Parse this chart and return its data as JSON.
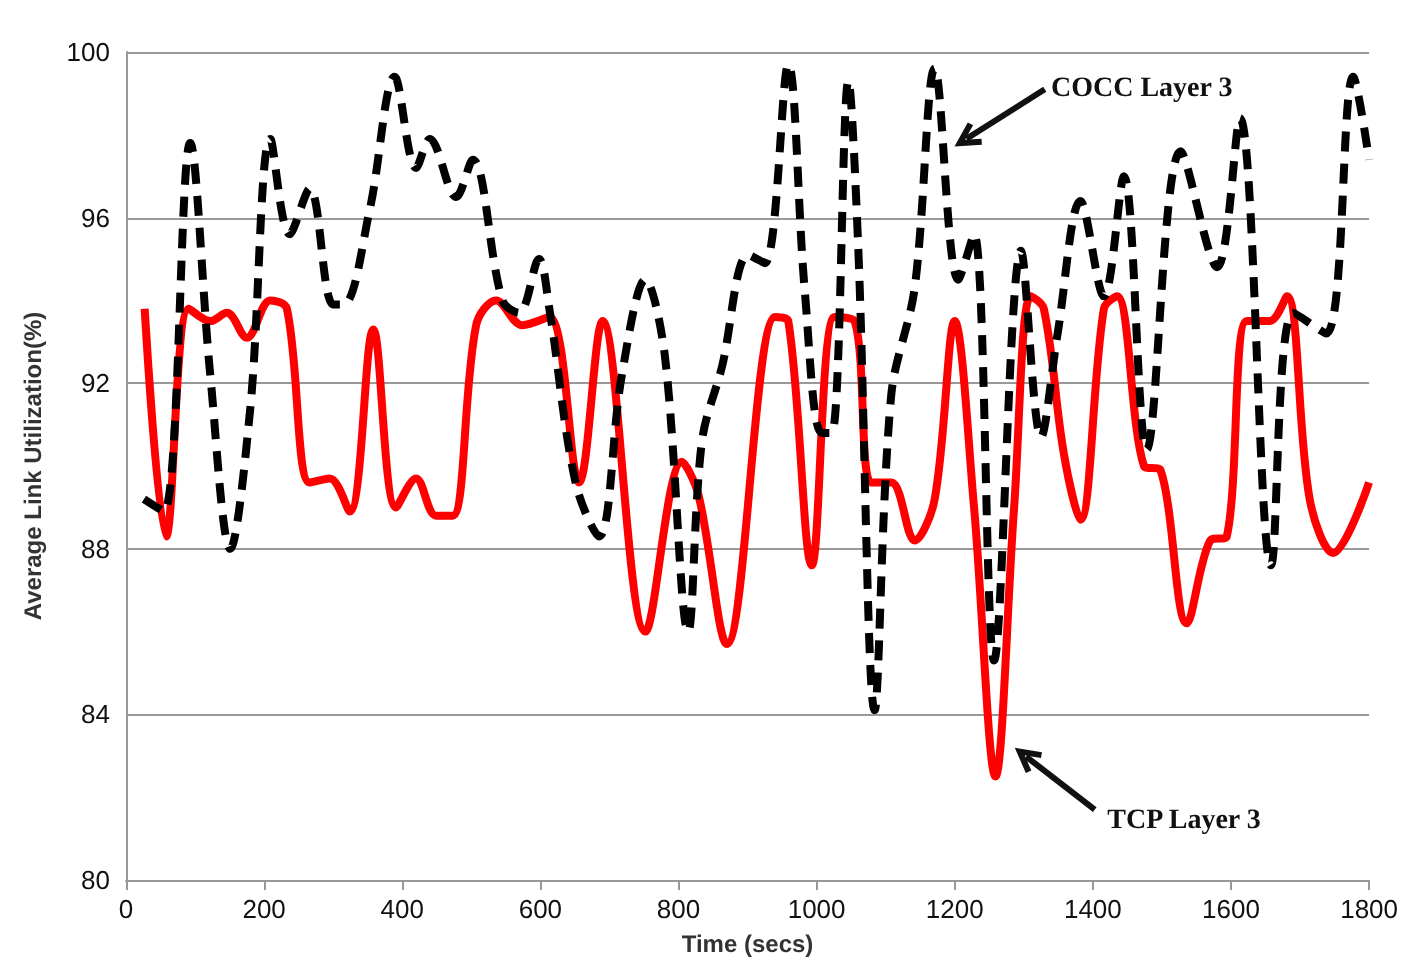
{
  "chart_data": {
    "type": "line",
    "xlabel": "Time (secs)",
    "ylabel": "Average Link Utilization(%)",
    "xlim": [
      0,
      1800
    ],
    "xticks": [
      0,
      200,
      400,
      600,
      800,
      1000,
      1200,
      1400,
      1600,
      1800
    ],
    "ylim": [
      80,
      100
    ],
    "yticks": [
      80,
      84,
      88,
      92,
      96,
      100
    ],
    "grid": "y",
    "legend": false,
    "marker": "none",
    "series": [
      {
        "name": "COCC Layer 3",
        "color": "#000000",
        "line_style": "dashed",
        "x": [
          26,
          55,
          93,
          122,
          151,
          180,
          209,
          237,
          266,
          300,
          315,
          353,
          389,
          420,
          440,
          478,
          502,
          545,
          569,
          598,
          613,
          651,
          685,
          718,
          752,
          780,
          814,
          834,
          863,
          901,
          925,
          959,
          983,
          1007,
          1022,
          1046,
          1060,
          1084,
          1108,
          1142,
          1171,
          1205,
          1228,
          1257,
          1296,
          1325,
          1349,
          1382,
          1416,
          1445,
          1478,
          1527,
          1580,
          1613,
          1658,
          1690,
          1738,
          1777,
          1800
        ],
        "values": [
          89.2,
          88.9,
          97.8,
          92.2,
          88,
          91.4,
          97.9,
          95.6,
          96.7,
          93.9,
          93.9,
          96.2,
          99.4,
          97.2,
          97.9,
          96.5,
          97.4,
          94,
          93.7,
          95,
          93.8,
          89.6,
          88.3,
          92.2,
          94.5,
          92.7,
          86,
          90.6,
          92.4,
          95.1,
          94.9,
          99.7,
          94.2,
          90.8,
          90.8,
          99.3,
          95.4,
          84.1,
          91.7,
          94.3,
          99.6,
          94.5,
          95.6,
          85.3,
          95.2,
          90.7,
          93.2,
          96.4,
          94.1,
          97,
          90.4,
          97.6,
          94.8,
          98.4,
          87.6,
          93.7,
          93.2,
          99.4,
          97.4
        ]
      },
      {
        "name": "TCP Layer 3",
        "color": "#ff0000",
        "line_style": "solid",
        "x": [
          27,
          58,
          91,
          122,
          146,
          175,
          209,
          233,
          266,
          295,
          324,
          358,
          391,
          420,
          449,
          473,
          507,
          536,
          574,
          613,
          656,
          690,
          752,
          805,
          829,
          870,
          940,
          959,
          993,
          1026,
          1055,
          1079,
          1108,
          1142,
          1171,
          1200,
          1228,
          1259,
          1286,
          1310,
          1329,
          1358,
          1382,
          1416,
          1435,
          1474,
          1498,
          1536,
          1570,
          1594,
          1623,
          1656,
          1681,
          1714,
          1748,
          1800
        ],
        "values": [
          93.8,
          88.3,
          93.8,
          93.5,
          93.7,
          93.1,
          94,
          93.8,
          89.6,
          89.7,
          88.9,
          93.3,
          89,
          89.7,
          88.8,
          88.8,
          93.4,
          94,
          93.4,
          93.6,
          89.6,
          93.5,
          86,
          90.1,
          89.3,
          85.7,
          93.6,
          93.5,
          87.6,
          93.6,
          93.5,
          89.6,
          89.6,
          88.2,
          89.2,
          93.5,
          89,
          82.5,
          89,
          94.1,
          93.8,
          90.3,
          88.7,
          93.8,
          94.1,
          90,
          89.9,
          86.2,
          88.2,
          88.3,
          93.5,
          93.5,
          94.1,
          89.2,
          87.9,
          89.6
        ]
      }
    ]
  }
}
